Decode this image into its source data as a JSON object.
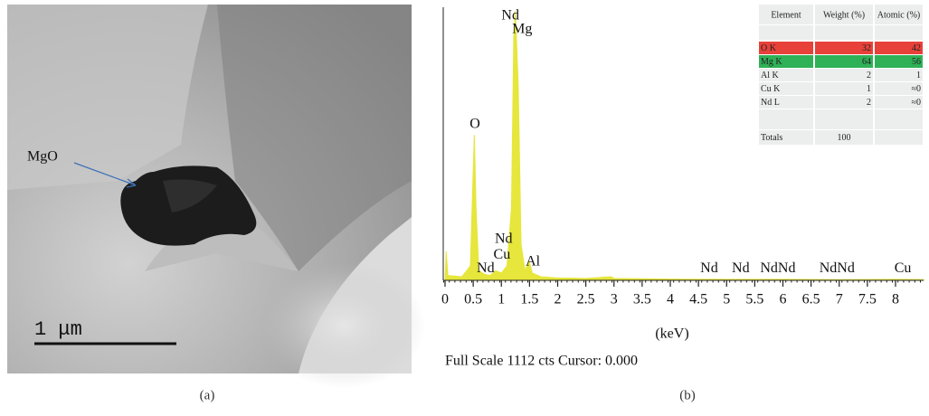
{
  "panels": [
    {
      "label": "(a)"
    },
    {
      "label": "(b)"
    }
  ],
  "image": {
    "annotation": "MgO",
    "scale_bar": "1 μm"
  },
  "chart_data": {
    "type": "area",
    "color": "#e6e63c",
    "x": [
      0,
      0.02,
      0.05,
      0.3,
      0.45,
      0.5,
      0.52,
      0.55,
      0.6,
      0.7,
      0.8,
      0.9,
      1.0,
      1.1,
      1.18,
      1.22,
      1.25,
      1.3,
      1.35,
      1.42,
      1.49,
      1.55,
      1.7,
      2.0,
      2.5,
      2.95,
      3.0,
      4.0,
      5.0,
      6.0,
      7.0,
      8.0,
      8.5
    ],
    "values": [
      0,
      120,
      20,
      15,
      60,
      450,
      600,
      300,
      40,
      25,
      20,
      40,
      30,
      60,
      300,
      1000,
      1112,
      800,
      150,
      40,
      80,
      30,
      15,
      10,
      8,
      15,
      8,
      5,
      4,
      4,
      3,
      4,
      3
    ],
    "xlim": [
      0,
      8.5
    ],
    "ylim": [
      0,
      1112
    ],
    "xticks": [
      0,
      0.5,
      1,
      1.5,
      2,
      2.5,
      3,
      3.5,
      4,
      4.5,
      5,
      5.5,
      6,
      6.5,
      7,
      7.5,
      8
    ],
    "xlabel": "(keV)",
    "footer": "Full Scale 1112 cts Cursor: 0.000",
    "annotations": [
      {
        "text": "Nd",
        "x": 1.16,
        "y": 1090
      },
      {
        "text": "Mg",
        "x": 1.37,
        "y": 1034
      },
      {
        "text": "O",
        "x": 0.53,
        "y": 642
      },
      {
        "text": "Nd",
        "x": 1.04,
        "y": 168
      },
      {
        "text": "Cu",
        "x": 1.01,
        "y": 104
      },
      {
        "text": "Al",
        "x": 1.56,
        "y": 75
      },
      {
        "text": "Nd",
        "x": 0.72,
        "y": 48
      },
      {
        "text": "Nd",
        "x": 4.69,
        "y": 48
      },
      {
        "text": "Nd",
        "x": 5.25,
        "y": 48
      },
      {
        "text": "NdNd",
        "x": 5.91,
        "y": 48
      },
      {
        "text": "NdNd",
        "x": 6.96,
        "y": 48
      },
      {
        "text": "Cu",
        "x": 8.13,
        "y": 48
      }
    ]
  },
  "table": {
    "header": [
      "Element",
      "Weight (%)",
      "Atomic (%)"
    ],
    "rows": [
      {
        "cells": [
          "O K",
          32,
          42
        ],
        "color": "#e8413a"
      },
      {
        "cells": [
          "Mg K",
          64,
          56
        ],
        "color": "#2fb157"
      },
      {
        "cells": [
          "Al K",
          2,
          1
        ]
      },
      {
        "cells": [
          "Cu K",
          1,
          "≈0"
        ]
      },
      {
        "cells": [
          "Nd L",
          2,
          "≈0"
        ]
      }
    ],
    "totals": [
      "Totals",
      100
    ]
  }
}
